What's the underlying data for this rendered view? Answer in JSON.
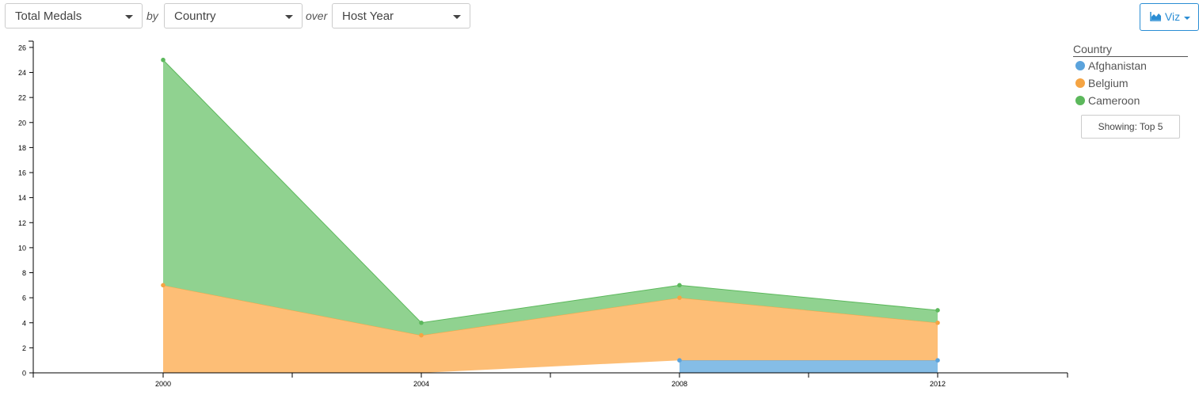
{
  "controls": {
    "measure": "Total Medals",
    "by_label": "by",
    "dimension": "Country",
    "over_label": "over",
    "time_dimension": "Host Year",
    "viz_button": "Viz"
  },
  "legend": {
    "title": "Country",
    "items": [
      {
        "label": "Afghanistan",
        "color": "#5ba3dc"
      },
      {
        "label": "Belgium",
        "color": "#f5a443"
      },
      {
        "label": "Cameroon",
        "color": "#5cb85c"
      }
    ],
    "showing_button": "Showing: Top 5"
  },
  "chart_data": {
    "type": "area",
    "stacked": true,
    "x": [
      2000,
      2004,
      2008,
      2012
    ],
    "x_tick_labels": [
      "2000",
      "2004",
      "2008",
      "2012"
    ],
    "y_ticks": [
      0,
      2,
      4,
      6,
      8,
      10,
      12,
      14,
      16,
      18,
      20,
      22,
      24,
      26
    ],
    "ylim": [
      0,
      26.5
    ],
    "series": [
      {
        "name": "Afghanistan",
        "color": "#5ba3dc",
        "fill": "#85bde6",
        "values": [
          null,
          null,
          1,
          1
        ]
      },
      {
        "name": "Belgium",
        "color": "#f5a443",
        "fill": "#fdbe76",
        "values": [
          7,
          3,
          5,
          3
        ]
      },
      {
        "name": "Cameroon",
        "color": "#5cb85c",
        "fill": "#90d290",
        "values": [
          18,
          1,
          1,
          1
        ]
      }
    ]
  }
}
